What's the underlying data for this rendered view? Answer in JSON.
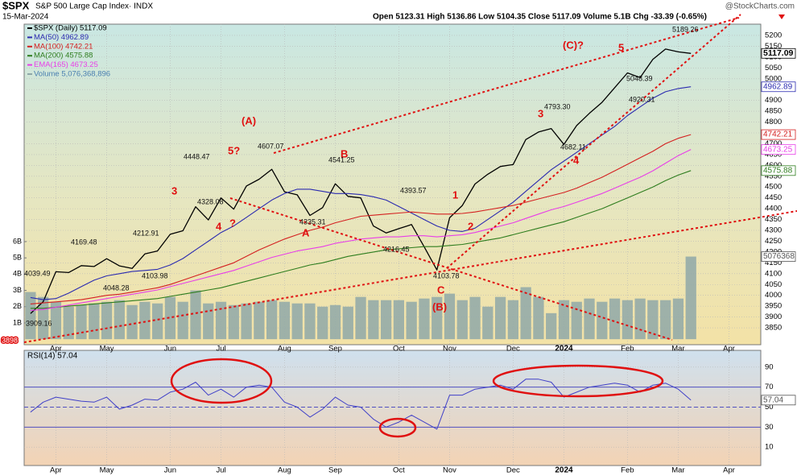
{
  "chart_data": [
    {
      "type": "stock",
      "symbol": "$SPX",
      "title": "S&P 500 Large Cap Index· INDX",
      "date": "15-Mar-2024",
      "quote": "Open 5123.31 High 5136.86 Low 5104.35 Close 5117.09 Volume 5.1B Chg -33.39 (-0.65%)",
      "source": "@StockCharts.com",
      "categories": [
        null,
        null,
        "Apr",
        null,
        null,
        null,
        "May",
        null,
        null,
        null,
        null,
        "Jun",
        null,
        null,
        null,
        "Jul",
        null,
        null,
        null,
        null,
        "Aug",
        null,
        null,
        null,
        "Sep",
        null,
        null,
        null,
        null,
        "Oct",
        null,
        null,
        null,
        "Nov",
        null,
        null,
        null,
        null,
        "Dec",
        null,
        null,
        null,
        "2024",
        null,
        null,
        null,
        null,
        "Feb",
        null,
        null,
        null,
        "Mar",
        null,
        null,
        null,
        "Apr",
        null,
        null
      ],
      "ylim": [
        3772,
        5252
      ],
      "yticks": [
        3850,
        3900,
        3950,
        4000,
        4050,
        4100,
        4150,
        4200,
        4250,
        4300,
        4350,
        4400,
        4450,
        4500,
        4550,
        4600,
        4650,
        4700,
        4750,
        4800,
        4850,
        4900,
        4950,
        5000,
        5050,
        5100,
        5150,
        5200
      ],
      "y2lim": [
        -0.34,
        19.37
      ],
      "y2ticks": [
        {
          "value": 1,
          "label": "1B"
        },
        {
          "value": 2,
          "label": "2B"
        },
        {
          "value": 3,
          "label": "3B"
        },
        {
          "value": 4,
          "label": "4B"
        },
        {
          "value": 5,
          "label": "5B"
        },
        {
          "value": 6,
          "label": "6B"
        }
      ],
      "grid": true,
      "series": [
        {
          "name": "$SPX (Daily) 5117.09",
          "color": "#000000",
          "end_label": "5117.09",
          "values": [
            3916,
            3971,
            4109,
            4105,
            4137,
            4133,
            4169,
            4136,
            4124,
            4191,
            4205,
            4282,
            4298,
            4409,
            4348,
            4450,
            4398,
            4505,
            4536,
            4582,
            4478,
            4464,
            4369,
            4405,
            4515,
            4457,
            4450,
            4320,
            4288,
            4308,
            4327,
            4224,
            4117,
            4358,
            4415,
            4514,
            4559,
            4595,
            4604,
            4719,
            4754,
            4770,
            4697,
            4784,
            4840,
            4891,
            4959,
            5027,
            5005,
            5089,
            5137,
            5124,
            5117.09,
            null,
            null,
            null,
            null,
            null
          ]
        },
        {
          "name": "MA(50) 4962.89",
          "color": "#2b2bb0",
          "end_label": "4962.89",
          "values": [
            3990,
            3980,
            3985,
            4010,
            4040,
            4070,
            4090,
            4100,
            4110,
            4115,
            4120,
            4140,
            4170,
            4210,
            4250,
            4290,
            4320,
            4360,
            4400,
            4440,
            4470,
            4490,
            4490,
            4480,
            4470,
            4470,
            4465,
            4455,
            4440,
            4410,
            4380,
            4350,
            4320,
            4300,
            4295,
            4310,
            4350,
            4390,
            4430,
            4480,
            4530,
            4580,
            4620,
            4660,
            4700,
            4740,
            4780,
            4830,
            4870,
            4910,
            4940,
            4955,
            4962.89,
            null,
            null,
            null,
            null,
            null
          ]
        },
        {
          "name": "MA(100) 4742.21",
          "color": "#d42020",
          "end_label": "4742.21",
          "values": [
            3960,
            3965,
            3970,
            3975,
            3980,
            3990,
            4000,
            4005,
            4015,
            4025,
            4035,
            4050,
            4070,
            4090,
            4110,
            4130,
            4150,
            4180,
            4210,
            4235,
            4260,
            4280,
            4300,
            4315,
            4335,
            4350,
            4365,
            4370,
            4375,
            4380,
            4385,
            4380,
            4375,
            4375,
            4378,
            4385,
            4395,
            4405,
            4415,
            4430,
            4445,
            4460,
            4475,
            4495,
            4520,
            4545,
            4575,
            4605,
            4635,
            4665,
            4700,
            4725,
            4742.21,
            null,
            null,
            null,
            null,
            null
          ]
        },
        {
          "name": "MA(200) 4575.88",
          "color": "#2e7d1e",
          "end_label": "4575.88",
          "values": [
            3940,
            3940,
            3945,
            3950,
            3955,
            3960,
            3965,
            3970,
            3975,
            3980,
            3985,
            3995,
            4005,
            4015,
            4025,
            4035,
            4050,
            4065,
            4080,
            4095,
            4110,
            4125,
            4140,
            4150,
            4165,
            4180,
            4190,
            4200,
            4210,
            4215,
            4220,
            4225,
            4225,
            4230,
            4235,
            4245,
            4255,
            4265,
            4280,
            4295,
            4310,
            4325,
            4340,
            4360,
            4380,
            4400,
            4425,
            4450,
            4475,
            4500,
            4530,
            4555,
            4575.88,
            null,
            null,
            null,
            null,
            null
          ]
        },
        {
          "name": "EMA(165) 4673.25",
          "color": "#e83ee8",
          "end_label": "4673.25",
          "values": [
            3930,
            3935,
            3945,
            3955,
            3965,
            3975,
            3985,
            3995,
            4005,
            4015,
            4025,
            4040,
            4055,
            4070,
            4085,
            4100,
            4115,
            4135,
            4155,
            4175,
            4190,
            4205,
            4215,
            4225,
            4240,
            4250,
            4260,
            4265,
            4270,
            4270,
            4275,
            4275,
            4270,
            4275,
            4280,
            4290,
            4305,
            4320,
            4335,
            4355,
            4375,
            4395,
            4410,
            4430,
            4450,
            4470,
            4495,
            4520,
            4545,
            4575,
            4610,
            4645,
            4673.25,
            null,
            null,
            null,
            null,
            null
          ]
        },
        {
          "name": "Volume 5,076,368,896",
          "color": "#8fa8a8",
          "axis": "y2",
          "end_label": "5076368",
          "values": [
            2.9,
            2.6,
            2.3,
            2.0,
            2.1,
            2.2,
            2.3,
            2.4,
            2.1,
            2.3,
            2.2,
            2.6,
            2.3,
            3.0,
            2.2,
            2.3,
            2.1,
            2.2,
            2.3,
            2.4,
            2.3,
            2.2,
            2.2,
            2.0,
            2.1,
            2.0,
            2.6,
            2.4,
            2.4,
            2.4,
            2.3,
            2.5,
            2.6,
            2.8,
            2.4,
            2.6,
            2.0,
            2.6,
            2.4,
            3.2,
            2.6,
            1.6,
            2.4,
            2.3,
            2.5,
            2.3,
            2.5,
            2.4,
            2.5,
            2.4,
            2.4,
            2.5,
            5.08,
            null,
            null,
            null,
            null,
            null
          ]
        }
      ],
      "annotations": [
        "(A)",
        "5?",
        "3",
        "4",
        "?",
        "B",
        "A",
        "C",
        "(B)",
        "1",
        "2",
        "3",
        "4",
        "5",
        "(C)?",
        "3898"
      ],
      "price_labels": [
        "4039.49",
        "3909.16",
        "4169.48",
        "4048.28",
        "4212.91",
        "4103.98",
        "4448.47",
        "4328.08",
        "4607.07",
        "4335.31",
        "4541.25",
        "4393.57",
        "4216.45",
        "4103.78",
        "4793.30",
        "4682.11",
        "5048.39",
        "4920.31",
        "5189.26"
      ]
    },
    {
      "type": "line",
      "title": "RSI(14) 57.04",
      "categories": [
        null,
        null,
        "Apr",
        null,
        null,
        null,
        "May",
        null,
        null,
        null,
        null,
        "Jun",
        null,
        null,
        null,
        "Jul",
        null,
        null,
        null,
        null,
        "Aug",
        null,
        null,
        null,
        "Sep",
        null,
        null,
        null,
        null,
        "Oct",
        null,
        null,
        null,
        "Nov",
        null,
        null,
        null,
        null,
        "Dec",
        null,
        null,
        null,
        "2024",
        null,
        null,
        null,
        null,
        "Feb",
        null,
        null,
        null,
        "Mar",
        null,
        null,
        null,
        "Apr",
        null,
        null
      ],
      "ylim": [
        -8.4,
        106.8
      ],
      "yticks": [
        10,
        30,
        50,
        70,
        90
      ],
      "hlines": [
        30,
        50,
        70
      ],
      "color": "#4040c8",
      "end_label": "57.04",
      "values": [
        45,
        55,
        60,
        58,
        56,
        55,
        60,
        48,
        52,
        58,
        57,
        65,
        68,
        75,
        62,
        68,
        60,
        70,
        72,
        70,
        55,
        50,
        40,
        48,
        60,
        52,
        50,
        38,
        30,
        35,
        42,
        35,
        28,
        62,
        62,
        68,
        70,
        72,
        68,
        78,
        78,
        75,
        60,
        65,
        70,
        72,
        74,
        72,
        65,
        72,
        74,
        68,
        57.04,
        null,
        null,
        null,
        null,
        null
      ]
    }
  ]
}
